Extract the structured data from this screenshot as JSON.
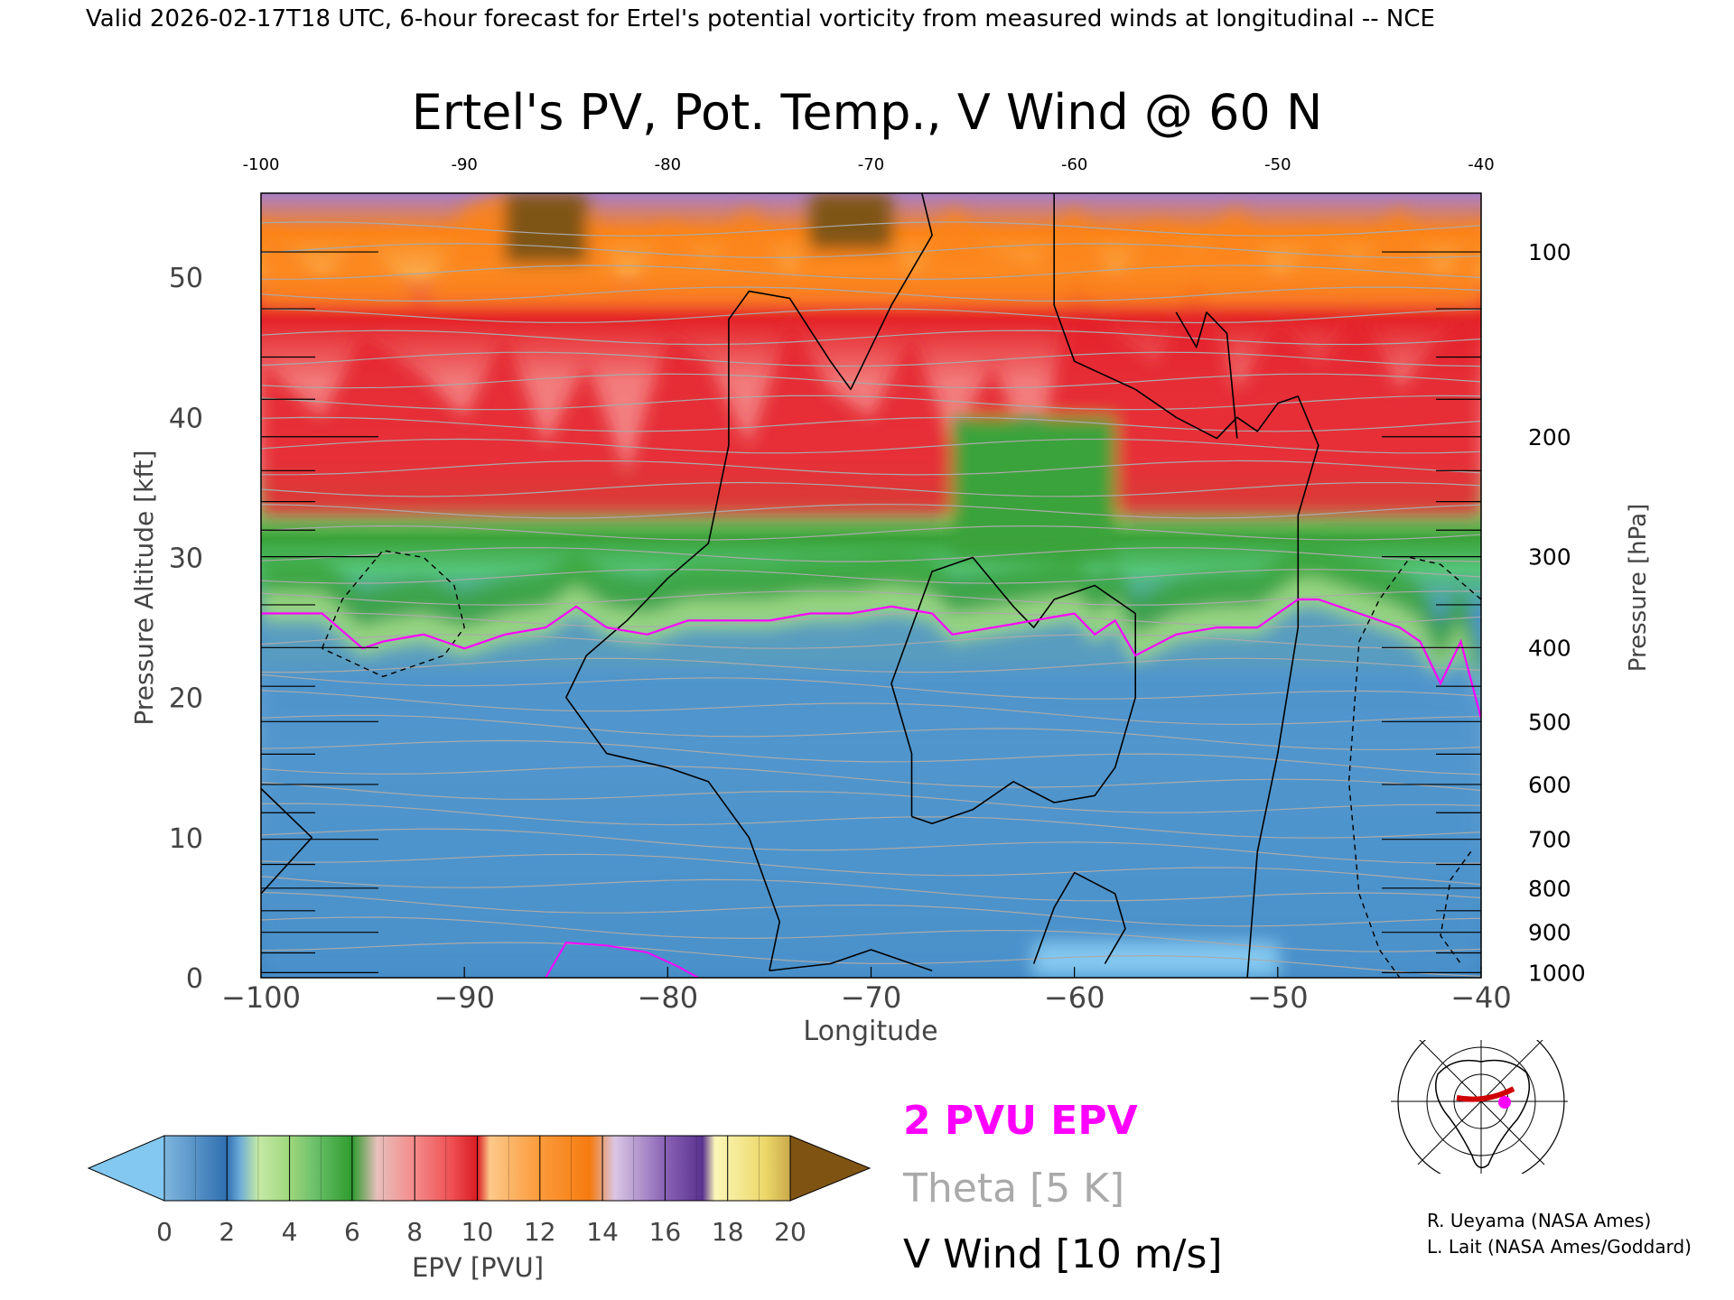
{
  "header": {
    "valid_line": "Valid 2026-02-17T18 UTC, 6-hour forecast for Ertel's potential vorticity from measured winds at longitudinal -- NCE"
  },
  "chart_data": {
    "type": "heatmap",
    "title": "Ertel's PV, Pot. Temp., V Wind @ 60 N",
    "xlabel": "Longitude",
    "ylabel_left": "Pressure Altitude [kft]",
    "ylabel_right": "Pressure [hPa]",
    "xlim": [
      -100,
      -40
    ],
    "ylim_kft": [
      0,
      56
    ],
    "x_ticks": [
      "−100",
      "−90",
      "−80",
      "−70",
      "−60",
      "−50",
      "−40"
    ],
    "x_ticks_top": [
      "-100",
      "-90",
      "-80",
      "-70",
      "-60",
      "-50",
      "-40"
    ],
    "y_ticks_left": [
      {
        "value": 0,
        "label": "0"
      },
      {
        "value": 10,
        "label": "10"
      },
      {
        "value": 20,
        "label": "20"
      },
      {
        "value": 30,
        "label": "30"
      },
      {
        "value": 40,
        "label": "40"
      },
      {
        "value": 50,
        "label": "50"
      }
    ],
    "y_ticks_right": [
      {
        "hpa": 100,
        "label": "100"
      },
      {
        "hpa": 200,
        "label": "200"
      },
      {
        "hpa": 300,
        "label": "300"
      },
      {
        "hpa": 400,
        "label": "400"
      },
      {
        "hpa": 500,
        "label": "500"
      },
      {
        "hpa": 600,
        "label": "600"
      },
      {
        "hpa": 700,
        "label": "700"
      },
      {
        "hpa": 800,
        "label": "800"
      },
      {
        "hpa": 900,
        "label": "900"
      },
      {
        "hpa": 1000,
        "label": "1000"
      }
    ],
    "epv_tropopause_2pvu_kft": {
      "lon": [
        -100,
        -97,
        -95,
        -94,
        -92,
        -90,
        -88,
        -86,
        -84.5,
        -83,
        -81,
        -79,
        -77,
        -75,
        -73,
        -71,
        -69,
        -67,
        -66,
        -64,
        -62,
        -60,
        -59,
        -58,
        -57,
        -55,
        -53,
        -51,
        -49,
        -48,
        -46,
        -44,
        -43,
        -42,
        -41,
        -40
      ],
      "kft": [
        26,
        26,
        23.5,
        24,
        24.5,
        23.5,
        24.5,
        25,
        26.5,
        25,
        24.5,
        25.5,
        25.5,
        25.5,
        26,
        26,
        26.5,
        26,
        24.5,
        25,
        25.5,
        26,
        24.5,
        25.5,
        23,
        24.5,
        25,
        25,
        27,
        27,
        26,
        25,
        24,
        21,
        24,
        18.5
      ]
    },
    "colorbar": {
      "label": "EPV [PVU]",
      "ticks": [
        "0",
        "2",
        "4",
        "6",
        "8",
        "10",
        "12",
        "14",
        "16",
        "18",
        "20"
      ],
      "colors": [
        "#83c8f0",
        "#3a7fc0",
        "#a8de8a",
        "#3aa33a",
        "#f48a8a",
        "#e42228",
        "#fba94a",
        "#fb8318",
        "#b69cd3",
        "#6d409b",
        "#fdf6a0",
        "#7f5413"
      ]
    },
    "legend": [
      {
        "label": "2 PVU EPV",
        "color": "#ff00ff"
      },
      {
        "label": "Theta [5 K]",
        "color": "#aaaaaa"
      },
      {
        "label": "V Wind [10 m/s]",
        "color": "#000000"
      }
    ]
  },
  "credits": {
    "line1": "R. Ueyama (NASA Ames)",
    "line2": "L. Lait (NASA Ames/Goddard)"
  }
}
